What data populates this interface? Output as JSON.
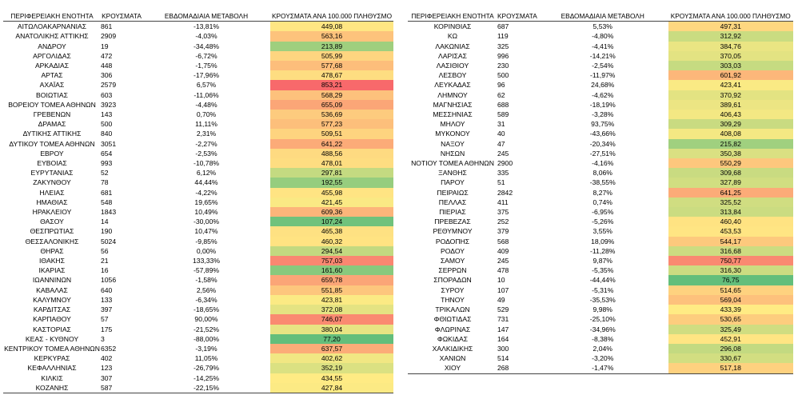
{
  "headers": {
    "region": "ΠΕΡΙΦΕΡΕΙΑΚΗ ΕΝΟΤΗΤΑ",
    "cases": "ΚΡΟΥΣΜΑΤΑ",
    "weekly_change": "ΕΒΔΟΜΑΔΙΑΙΑ ΜΕΤΑΒΟΛΗ",
    "per_100k": "ΚΡΟΥΣΜΑΤΑ ΑΝΑ 100.000 ΠΛΗΘΥΣΜΟ"
  },
  "color_scale": {
    "low": "#63be7b",
    "mid": "#ffeb84",
    "high": "#f8696b"
  },
  "left_rows": [
    {
      "name": "ΑΙΤΩΛΟΑΚΑΡΝΑΝΙΑΣ",
      "cases": "861",
      "change": "-13,81%",
      "per100k": "449,08"
    },
    {
      "name": "ΑΝΑΤΟΛΙΚΗΣ ΑΤΤΙΚΗΣ",
      "cases": "2909",
      "change": "-4,03%",
      "per100k": "563,16"
    },
    {
      "name": "ΑΝΔΡΟΥ",
      "cases": "19",
      "change": "-34,48%",
      "per100k": "213,89"
    },
    {
      "name": "ΑΡΓΟΛΙΔΑΣ",
      "cases": "472",
      "change": "-6,72%",
      "per100k": "505,99"
    },
    {
      "name": "ΑΡΚΑΔΙΑΣ",
      "cases": "448",
      "change": "-1,75%",
      "per100k": "577,68"
    },
    {
      "name": "ΑΡΤΑΣ",
      "cases": "306",
      "change": "-17,96%",
      "per100k": "478,67"
    },
    {
      "name": "ΑΧΑΪΑΣ",
      "cases": "2579",
      "change": "6,57%",
      "per100k": "853,21"
    },
    {
      "name": "ΒΟΙΩΤΙΑΣ",
      "cases": "603",
      "change": "-11,06%",
      "per100k": "568,29"
    },
    {
      "name": "ΒΟΡΕΙΟΥ ΤΟΜΕΑ ΑΘΗΝΩΝ",
      "cases": "3923",
      "change": "-4,48%",
      "per100k": "655,09"
    },
    {
      "name": "ΓΡΕΒΕΝΩΝ",
      "cases": "143",
      "change": "0,70%",
      "per100k": "536,69"
    },
    {
      "name": "ΔΡΑΜΑΣ",
      "cases": "500",
      "change": "11,11%",
      "per100k": "577,23"
    },
    {
      "name": "ΔΥΤΙΚΗΣ ΑΤΤΙΚΗΣ",
      "cases": "840",
      "change": "2,31%",
      "per100k": "509,51"
    },
    {
      "name": "ΔΥΤΙΚΟΥ ΤΟΜΕΑ ΑΘΗΝΩΝ",
      "cases": "3051",
      "change": "-2,27%",
      "per100k": "641,22"
    },
    {
      "name": "ΕΒΡΟΥ",
      "cases": "654",
      "change": "-2,53%",
      "per100k": "488,56"
    },
    {
      "name": "ΕΥΒΟΙΑΣ",
      "cases": "993",
      "change": "-10,78%",
      "per100k": "478,01"
    },
    {
      "name": "ΕΥΡΥΤΑΝΙΑΣ",
      "cases": "52",
      "change": "6,12%",
      "per100k": "297,81"
    },
    {
      "name": "ΖΑΚΥΝΘΟΥ",
      "cases": "78",
      "change": "44,44%",
      "per100k": "192,55"
    },
    {
      "name": "ΗΛΕΙΑΣ",
      "cases": "681",
      "change": "-4,22%",
      "per100k": "455,98"
    },
    {
      "name": "ΗΜΑΘΙΑΣ",
      "cases": "548",
      "change": "19,65%",
      "per100k": "421,45"
    },
    {
      "name": "ΗΡΑΚΛΕΙΟΥ",
      "cases": "1843",
      "change": "10,49%",
      "per100k": "609,36"
    },
    {
      "name": "ΘΑΣΟΥ",
      "cases": "14",
      "change": "-30,00%",
      "per100k": "107,24"
    },
    {
      "name": "ΘΕΣΠΡΩΤΙΑΣ",
      "cases": "190",
      "change": "10,47%",
      "per100k": "465,38"
    },
    {
      "name": "ΘΕΣΣΑΛΟΝΙΚΗΣ",
      "cases": "5024",
      "change": "-9,85%",
      "per100k": "460,32"
    },
    {
      "name": "ΘΗΡΑΣ",
      "cases": "56",
      "change": "0,00%",
      "per100k": "294,54"
    },
    {
      "name": "ΙΘΑΚΗΣ",
      "cases": "21",
      "change": "133,33%",
      "per100k": "757,03"
    },
    {
      "name": "ΙΚΑΡΙΑΣ",
      "cases": "16",
      "change": "-57,89%",
      "per100k": "161,60"
    },
    {
      "name": "ΙΩΑΝΝΙΝΩΝ",
      "cases": "1056",
      "change": "-1,58%",
      "per100k": "659,78"
    },
    {
      "name": "ΚΑΒΑΛΑΣ",
      "cases": "640",
      "change": "2,56%",
      "per100k": "551,85"
    },
    {
      "name": "ΚΑΛΥΜΝΟΥ",
      "cases": "133",
      "change": "-6,34%",
      "per100k": "423,81"
    },
    {
      "name": "ΚΑΡΔΙΤΣΑΣ",
      "cases": "397",
      "change": "-18,65%",
      "per100k": "372,08"
    },
    {
      "name": "ΚΑΡΠΑΘΟΥ",
      "cases": "57",
      "change": "90,00%",
      "per100k": "746,07"
    },
    {
      "name": "ΚΑΣΤΟΡΙΑΣ",
      "cases": "175",
      "change": "-21,52%",
      "per100k": "380,04"
    },
    {
      "name": "ΚΕΑΣ - ΚΥΘΝΟΥ",
      "cases": "3",
      "change": "-88,00%",
      "per100k": "77,20"
    },
    {
      "name": "ΚΕΝΤΡΙΚΟΥ ΤΟΜΕΑ ΑΘΗΝΩΝ",
      "cases": "6352",
      "change": "-3,19%",
      "per100k": "637,57"
    },
    {
      "name": "ΚΕΡΚΥΡΑΣ",
      "cases": "402",
      "change": "11,05%",
      "per100k": "402,62"
    },
    {
      "name": "ΚΕΦΑΛΛΗΝΙΑΣ",
      "cases": "123",
      "change": "-26,79%",
      "per100k": "352,19"
    },
    {
      "name": "ΚΙΛΚΙΣ",
      "cases": "307",
      "change": "-14,25%",
      "per100k": "434,55"
    },
    {
      "name": "ΚΟΖΑΝΗΣ",
      "cases": "587",
      "change": "-22,15%",
      "per100k": "427,84"
    }
  ],
  "right_rows": [
    {
      "name": "ΚΟΡΙΝΘΙΑΣ",
      "cases": "687",
      "change": "5,53%",
      "per100k": "497,31"
    },
    {
      "name": "ΚΩ",
      "cases": "119",
      "change": "-4,80%",
      "per100k": "312,92"
    },
    {
      "name": "ΛΑΚΩΝΙΑΣ",
      "cases": "325",
      "change": "-4,41%",
      "per100k": "384,76"
    },
    {
      "name": "ΛΑΡΙΣΑΣ",
      "cases": "996",
      "change": "-14,21%",
      "per100k": "370,05"
    },
    {
      "name": "ΛΑΣΙΘΙΟΥ",
      "cases": "230",
      "change": "-2,54%",
      "per100k": "303,03"
    },
    {
      "name": "ΛΕΣΒΟΥ",
      "cases": "500",
      "change": "-11,97%",
      "per100k": "601,92"
    },
    {
      "name": "ΛΕΥΚΑΔΑΣ",
      "cases": "96",
      "change": "24,68%",
      "per100k": "423,41"
    },
    {
      "name": "ΛΗΜΝΟΥ",
      "cases": "62",
      "change": "-4,62%",
      "per100k": "370,92"
    },
    {
      "name": "ΜΑΓΝΗΣΙΑΣ",
      "cases": "688",
      "change": "-18,19%",
      "per100k": "389,61"
    },
    {
      "name": "ΜΕΣΣΗΝΙΑΣ",
      "cases": "589",
      "change": "-3,28%",
      "per100k": "406,43"
    },
    {
      "name": "ΜΗΛΟΥ",
      "cases": "31",
      "change": "93,75%",
      "per100k": "309,29"
    },
    {
      "name": "ΜΥΚΟΝΟΥ",
      "cases": "40",
      "change": "-43,66%",
      "per100k": "408,08"
    },
    {
      "name": "ΝΑΞΟΥ",
      "cases": "47",
      "change": "-20,34%",
      "per100k": "215,82"
    },
    {
      "name": "ΝΗΣΩΝ",
      "cases": "245",
      "change": "-27,51%",
      "per100k": "350,38"
    },
    {
      "name": "ΝΟΤΙΟΥ ΤΟΜΕΑ ΑΘΗΝΩΝ",
      "cases": "2900",
      "change": "-4,16%",
      "per100k": "550,29"
    },
    {
      "name": "ΞΑΝΘΗΣ",
      "cases": "335",
      "change": "8,06%",
      "per100k": "309,68"
    },
    {
      "name": "ΠΑΡΟΥ",
      "cases": "51",
      "change": "-38,55%",
      "per100k": "327,89"
    },
    {
      "name": "ΠΕΙΡΑΙΩΣ",
      "cases": "2842",
      "change": "8,27%",
      "per100k": "641,25"
    },
    {
      "name": "ΠΕΛΛΑΣ",
      "cases": "411",
      "change": "0,74%",
      "per100k": "325,52"
    },
    {
      "name": "ΠΙΕΡΙΑΣ",
      "cases": "375",
      "change": "-6,95%",
      "per100k": "313,84"
    },
    {
      "name": "ΠΡΕΒΕΖΑΣ",
      "cases": "252",
      "change": "-5,26%",
      "per100k": "460,40"
    },
    {
      "name": "ΡΕΘΥΜΝΟΥ",
      "cases": "379",
      "change": "3,55%",
      "per100k": "453,53"
    },
    {
      "name": "ΡΟΔΟΠΗΣ",
      "cases": "568",
      "change": "18,09%",
      "per100k": "544,17"
    },
    {
      "name": "ΡΟΔΟΥ",
      "cases": "409",
      "change": "-11,28%",
      "per100k": "316,68"
    },
    {
      "name": "ΣΑΜΟΥ",
      "cases": "245",
      "change": "9,87%",
      "per100k": "750,77"
    },
    {
      "name": "ΣΕΡΡΩΝ",
      "cases": "478",
      "change": "-5,35%",
      "per100k": "316,30"
    },
    {
      "name": "ΣΠΟΡΑΔΩΝ",
      "cases": "10",
      "change": "-44,44%",
      "per100k": "76,75"
    },
    {
      "name": "ΣΥΡΟΥ",
      "cases": "107",
      "change": "-5,31%",
      "per100k": "514,65"
    },
    {
      "name": "ΤΗΝΟΥ",
      "cases": "49",
      "change": "-35,53%",
      "per100k": "569,04"
    },
    {
      "name": "ΤΡΙΚΑΛΩΝ",
      "cases": "529",
      "change": "9,98%",
      "per100k": "433,39"
    },
    {
      "name": "ΦΘΙΩΤΙΔΑΣ",
      "cases": "731",
      "change": "-25,10%",
      "per100k": "530,65"
    },
    {
      "name": "ΦΛΩΡΙΝΑΣ",
      "cases": "147",
      "change": "-34,96%",
      "per100k": "325,49"
    },
    {
      "name": "ΦΩΚΙΔΑΣ",
      "cases": "164",
      "change": "-8,38%",
      "per100k": "452,91"
    },
    {
      "name": "ΧΑΛΚΙΔΙΚΗΣ",
      "cases": "300",
      "change": "2,04%",
      "per100k": "296,08"
    },
    {
      "name": "ΧΑΝΙΩΝ",
      "cases": "514",
      "change": "-3,20%",
      "per100k": "330,67"
    },
    {
      "name": "ΧΙΟΥ",
      "cases": "268",
      "change": "-1,47%",
      "per100k": "517,18"
    }
  ]
}
